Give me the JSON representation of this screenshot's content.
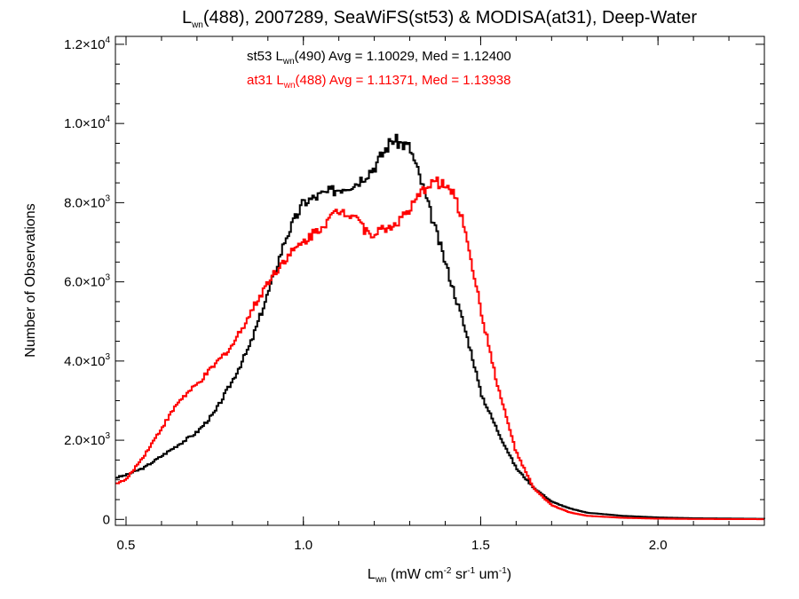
{
  "chart_data": {
    "type": "line",
    "title": {
      "main": "L",
      "sub": "wn",
      "rest": "(488), 2007289, SeaWiFS(st53) & MODISA(at31), Deep-Water"
    },
    "xlabel": {
      "main": "L",
      "sub": "wn",
      "units_a": " (mW cm",
      "sup1": "-2",
      "units_b": " sr",
      "sup2": "-1",
      "units_c": " um",
      "sup3": "-1",
      "units_d": ")"
    },
    "ylabel": "Number of Observations",
    "xlim": [
      0.47,
      2.3
    ],
    "ylim": [
      -150,
      12200
    ],
    "x_ticks": [
      0.5,
      1.0,
      1.5,
      2.0
    ],
    "x_tick_labels": [
      "0.5",
      "1.0",
      "1.5",
      "2.0"
    ],
    "y_ticks": [
      {
        "value": 0,
        "mant": "0",
        "exp": ""
      },
      {
        "value": 2000,
        "mant": "2.0×10",
        "exp": "3"
      },
      {
        "value": 4000,
        "mant": "4.0×10",
        "exp": "3"
      },
      {
        "value": 6000,
        "mant": "6.0×10",
        "exp": "3"
      },
      {
        "value": 8000,
        "mant": "8.0×10",
        "exp": "3"
      },
      {
        "value": 10000,
        "mant": "1.0×10",
        "exp": "4"
      },
      {
        "value": 12000,
        "mant": "1.2×10",
        "exp": "4"
      }
    ],
    "legend": [
      {
        "pre": "st53 L",
        "sub": "wn",
        "post": "(490) Avg = 1.10029, Med = 1.12400",
        "color": "#000000"
      },
      {
        "pre": "at31 L",
        "sub": "wn",
        "post": "(488) Avg = 1.11371, Med = 1.13938",
        "color": "#ff0000"
      }
    ],
    "series": [
      {
        "color": "#000000",
        "points": [
          [
            0.47,
            1050
          ],
          [
            0.5,
            1120
          ],
          [
            0.55,
            1300
          ],
          [
            0.6,
            1600
          ],
          [
            0.65,
            1900
          ],
          [
            0.7,
            2200
          ],
          [
            0.75,
            2700
          ],
          [
            0.8,
            3500
          ],
          [
            0.85,
            4400
          ],
          [
            0.9,
            5700
          ],
          [
            0.95,
            7100
          ],
          [
            1.0,
            8000
          ],
          [
            1.05,
            8200
          ],
          [
            1.1,
            8350
          ],
          [
            1.15,
            8500
          ],
          [
            1.2,
            8900
          ],
          [
            1.25,
            9600
          ],
          [
            1.3,
            9400
          ],
          [
            1.33,
            8600
          ],
          [
            1.36,
            7700
          ],
          [
            1.4,
            6500
          ],
          [
            1.45,
            5000
          ],
          [
            1.48,
            4000
          ],
          [
            1.5,
            3200
          ],
          [
            1.55,
            2200
          ],
          [
            1.6,
            1300
          ],
          [
            1.65,
            800
          ],
          [
            1.7,
            450
          ],
          [
            1.75,
            280
          ],
          [
            1.8,
            170
          ],
          [
            1.9,
            90
          ],
          [
            2.0,
            50
          ],
          [
            2.1,
            30
          ],
          [
            2.3,
            15
          ]
        ]
      },
      {
        "color": "#ff0000",
        "points": [
          [
            0.47,
            900
          ],
          [
            0.5,
            1000
          ],
          [
            0.55,
            1600
          ],
          [
            0.6,
            2300
          ],
          [
            0.65,
            3000
          ],
          [
            0.7,
            3400
          ],
          [
            0.75,
            3900
          ],
          [
            0.8,
            4400
          ],
          [
            0.85,
            5200
          ],
          [
            0.9,
            6000
          ],
          [
            0.95,
            6600
          ],
          [
            1.0,
            7000
          ],
          [
            1.05,
            7400
          ],
          [
            1.1,
            7800
          ],
          [
            1.15,
            7700
          ],
          [
            1.18,
            7200
          ],
          [
            1.2,
            7250
          ],
          [
            1.25,
            7400
          ],
          [
            1.3,
            7800
          ],
          [
            1.33,
            8200
          ],
          [
            1.36,
            8550
          ],
          [
            1.4,
            8450
          ],
          [
            1.43,
            8100
          ],
          [
            1.46,
            7200
          ],
          [
            1.5,
            5300
          ],
          [
            1.55,
            3300
          ],
          [
            1.6,
            1700
          ],
          [
            1.65,
            780
          ],
          [
            1.7,
            360
          ],
          [
            1.75,
            180
          ],
          [
            1.8,
            90
          ],
          [
            1.9,
            40
          ],
          [
            2.0,
            18
          ],
          [
            2.1,
            10
          ],
          [
            2.3,
            5
          ]
        ]
      }
    ]
  }
}
